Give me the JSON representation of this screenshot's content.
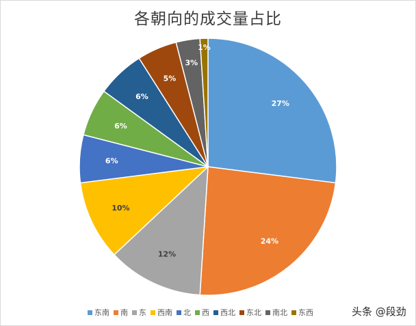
{
  "chart_data": {
    "type": "pie",
    "title": "各朝向的成交量占比",
    "categories": [
      "东南",
      "南",
      "东",
      "西南",
      "北",
      "西",
      "西北",
      "东北",
      "南北",
      "东西"
    ],
    "values": [
      27,
      24,
      12,
      10,
      6,
      6,
      6,
      5,
      3,
      1
    ],
    "data_labels": [
      "27%",
      "24%",
      "12%",
      "10%",
      "6%",
      "6%",
      "6%",
      "5%",
      "3%",
      "1%"
    ],
    "colors": [
      "#5b9bd5",
      "#ed7d31",
      "#a5a5a5",
      "#ffc000",
      "#4472c4",
      "#70ad47",
      "#255e91",
      "#9e480e",
      "#636363",
      "#997300"
    ],
    "legend_position": "bottom",
    "start_angle_deg": 0,
    "direction": "clockwise"
  },
  "watermark": "头条 @段劲"
}
